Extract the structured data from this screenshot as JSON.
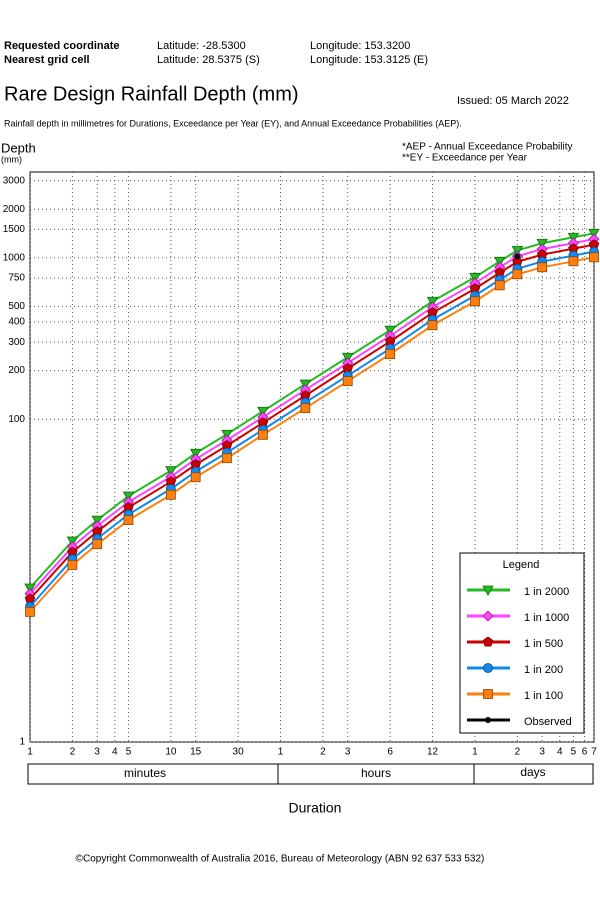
{
  "header": {
    "requested_label": "Requested coordinate",
    "requested_lat": "Latitude:  -28.5300",
    "requested_lon": "Longitude:  153.3200",
    "nearest_label": "Nearest grid cell",
    "nearest_lat": "Latitude:  28.5375 (S)",
    "nearest_lon": "Longitude:  153.3125 (E)",
    "title": "Rare Design Rainfall Depth (mm)",
    "issued": "Issued: 05 March 2022",
    "subtitle": "Rainfall depth in millimetres for Durations, Exceedance per Year (EY), and Annual Exceedance Probabilities (AEP)."
  },
  "chart_data": {
    "type": "line",
    "ylabel": "Depth",
    "ylabel_unit": "(mm)",
    "xlabel": "Duration",
    "notes": [
      "*AEP - Annual Exceedance Probability",
      "**EY - Exceedance per Year"
    ],
    "legend_title": "Legend",
    "legend_position": "lower right",
    "log_x": true,
    "log_y": true,
    "grid": true,
    "duration_groups": [
      "minutes",
      "hours",
      "days"
    ],
    "x": [
      1,
      2,
      3,
      5,
      10,
      15,
      25,
      45,
      90,
      180,
      360,
      720,
      1440,
      2160,
      2880,
      4320,
      7200,
      10080
    ],
    "xlim": [
      1,
      10080
    ],
    "xticks": [
      1,
      2,
      3,
      4,
      5,
      10,
      15,
      30,
      {
        "value": 60,
        "label": "1"
      },
      {
        "value": 120,
        "label": "2"
      },
      {
        "value": 180,
        "label": "3"
      },
      {
        "value": 360,
        "label": "6"
      },
      {
        "value": 720,
        "label": "12"
      },
      {
        "value": 1440,
        "label": "1"
      },
      {
        "value": 2880,
        "label": "2"
      },
      {
        "value": 4320,
        "label": "3"
      },
      {
        "value": 5760,
        "label": "4"
      },
      {
        "value": 7200,
        "label": "5"
      },
      {
        "value": 8640,
        "label": "6"
      },
      {
        "value": 10080,
        "label": "7"
      }
    ],
    "ylim": [
      1,
      3400
    ],
    "yticks": [
      1,
      100,
      200,
      300,
      400,
      500,
      750,
      1000,
      1500,
      2000,
      3000
    ],
    "series": [
      {
        "name": "1 in 2000",
        "color": "#22bb22",
        "marker": "triangle-down",
        "values": [
          9.0,
          17.6,
          23.7,
          33.4,
          48,
          61.5,
          80.7,
          112,
          165,
          242,
          356,
          538,
          757,
          951,
          1112,
          1230,
          1340,
          1418
        ]
      },
      {
        "name": "1 in 1000",
        "color": "#ff44ff",
        "marker": "diamond",
        "values": [
          8.3,
          16.2,
          21.8,
          30.7,
          44,
          56.6,
          74.2,
          103,
          152,
          223,
          328,
          495,
          696,
          875,
          1023,
          1132,
          1233,
          1305
        ]
      },
      {
        "name": "1 in 500",
        "color": "#cc0000",
        "marker": "pentagon",
        "values": [
          7.7,
          15.0,
          20.1,
          28.4,
          41,
          52.3,
          68.6,
          95,
          140,
          206,
          303,
          457,
          643,
          808,
          945,
          1046,
          1139,
          1205
        ]
      },
      {
        "name": "1 in 200",
        "color": "#1188ee",
        "marker": "circle",
        "values": [
          6.9,
          13.6,
          18.2,
          25.7,
          37,
          47.4,
          62.1,
          86,
          127,
          186,
          274,
          414,
          583,
          732,
          856,
          947,
          1032,
          1092
        ]
      },
      {
        "name": "1 in 100",
        "color": "#ff7f0e",
        "marker": "square",
        "values": [
          6.4,
          12.5,
          16.8,
          23.7,
          34,
          43.7,
          57.3,
          80,
          117,
          172,
          253,
          382,
          537,
          675,
          790,
          873,
          951,
          1007
        ]
      },
      {
        "name": "Observed",
        "color": "#000000",
        "marker": "dot",
        "values": [
          null,
          null,
          null,
          null,
          null,
          null,
          null,
          null,
          null,
          null,
          null,
          null,
          null,
          null,
          1020,
          null,
          null,
          null
        ]
      }
    ]
  },
  "footer": {
    "copyright": "©Copyright Commonwealth of Australia 2016, Bureau of Meteorology (ABN 92 637 533 532)"
  }
}
